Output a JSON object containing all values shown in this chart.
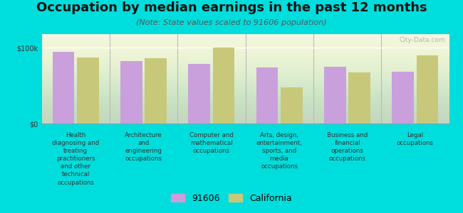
{
  "title": "Occupation by median earnings in the past 12 months",
  "subtitle": "(Note: State values scaled to 91606 population)",
  "categories": [
    "Health\ndiagnosing and\ntreating\npractitioners\nand other\ntechnical\noccupations",
    "Architecture\nand\nengineering\noccupations",
    "Computer and\nmathematical\noccupations",
    "Arts, design,\nentertainment,\nsports, and\nmedia\noccupations",
    "Business and\nfinancial\noperations\noccupations",
    "Legal\noccupations"
  ],
  "values_91606": [
    95000,
    82000,
    79000,
    74000,
    75000,
    68000
  ],
  "values_california": [
    87000,
    86000,
    100000,
    48000,
    67000,
    90000
  ],
  "color_91606": "#c9a0dc",
  "color_california": "#c8c87a",
  "background_outer": "#00dddd",
  "background_plot_top": "#f0f5e0",
  "background_plot_bottom": "#d8e8b0",
  "ylabel_100k": "$100k",
  "ylabel_0": "$0",
  "legend_91606": "91606",
  "legend_california": "California",
  "ylim": [
    0,
    118000
  ],
  "y_tick_100k": 100000,
  "watermark": "City-Data.com",
  "title_fontsize": 13,
  "subtitle_fontsize": 8,
  "tick_fontsize": 7,
  "bar_width": 0.32
}
